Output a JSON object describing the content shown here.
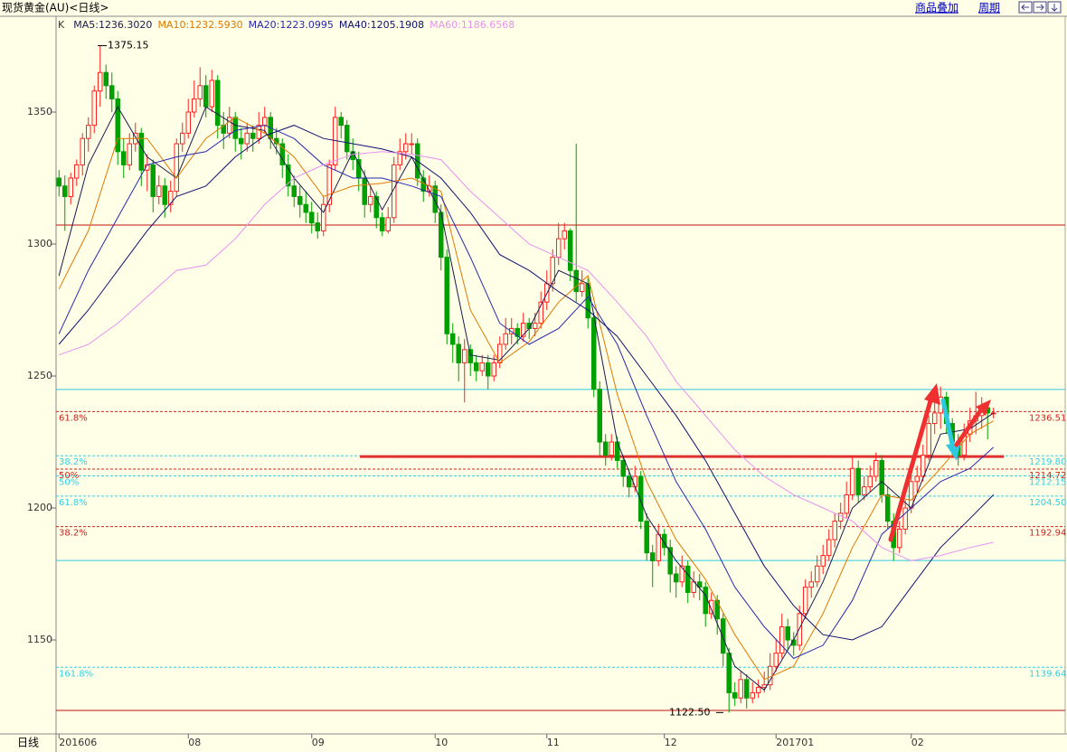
{
  "header": {
    "title": "现货黄金(AU)<日线>",
    "buttons": [
      "商品叠加",
      "周期"
    ]
  },
  "chart_data": {
    "type": "candlestick",
    "candle_label": "K",
    "period_label": "日线",
    "xlim": [
      -0.5,
      171.2
    ],
    "ylim": [
      1114.4,
      1386.3
    ],
    "yticks": [
      1150,
      1200,
      1250,
      1300,
      1350
    ],
    "xticks": [
      {
        "value": 0,
        "label": "201606"
      },
      {
        "value": 22,
        "label": "08"
      },
      {
        "value": 43,
        "label": "09"
      },
      {
        "value": 64,
        "label": "10"
      },
      {
        "value": 83,
        "label": "11"
      },
      {
        "value": 103,
        "label": "12"
      },
      {
        "value": 122,
        "label": "201701"
      },
      {
        "value": 145,
        "label": "02"
      }
    ],
    "grid": false,
    "up_color": "#ff2020",
    "down_color": "#00a000",
    "ohlc": [
      [
        1325,
        1328,
        1318,
        1322
      ],
      [
        1322,
        1326,
        1305,
        1318
      ],
      [
        1318,
        1327,
        1315,
        1325
      ],
      [
        1325,
        1332,
        1322,
        1330
      ],
      [
        1330,
        1342,
        1326,
        1340
      ],
      [
        1340,
        1348,
        1335,
        1345
      ],
      [
        1345,
        1360,
        1342,
        1358
      ],
      [
        1358,
        1375.15,
        1352,
        1365
      ],
      [
        1365,
        1368,
        1355,
        1360
      ],
      [
        1360,
        1365,
        1350,
        1355
      ],
      [
        1355,
        1358,
        1330,
        1335
      ],
      [
        1335,
        1340,
        1325,
        1330
      ],
      [
        1330,
        1342,
        1328,
        1338
      ],
      [
        1338,
        1346,
        1335,
        1342
      ],
      [
        1342,
        1344,
        1322,
        1328
      ],
      [
        1328,
        1334,
        1320,
        1330
      ],
      [
        1330,
        1332,
        1312,
        1318
      ],
      [
        1318,
        1326,
        1315,
        1322
      ],
      [
        1322,
        1325,
        1310,
        1315
      ],
      [
        1315,
        1324,
        1312,
        1320
      ],
      [
        1320,
        1340,
        1318,
        1338
      ],
      [
        1338,
        1346,
        1335,
        1342
      ],
      [
        1342,
        1355,
        1340,
        1350
      ],
      [
        1350,
        1362,
        1348,
        1355
      ],
      [
        1355,
        1367,
        1352,
        1360
      ],
      [
        1360,
        1364,
        1348,
        1352
      ],
      [
        1352,
        1366,
        1350,
        1362
      ],
      [
        1362,
        1364,
        1340,
        1345
      ],
      [
        1345,
        1350,
        1336,
        1342
      ],
      [
        1342,
        1352,
        1340,
        1348
      ],
      [
        1348,
        1350,
        1335,
        1340
      ],
      [
        1340,
        1344,
        1332,
        1338
      ],
      [
        1338,
        1346,
        1335,
        1342
      ],
      [
        1342,
        1345,
        1335,
        1340
      ],
      [
        1340,
        1350,
        1338,
        1345
      ],
      [
        1345,
        1352,
        1342,
        1348
      ],
      [
        1348,
        1350,
        1336,
        1340
      ],
      [
        1340,
        1344,
        1334,
        1338
      ],
      [
        1338,
        1340,
        1325,
        1330
      ],
      [
        1330,
        1334,
        1318,
        1322
      ],
      [
        1322,
        1326,
        1314,
        1318
      ],
      [
        1318,
        1322,
        1310,
        1315
      ],
      [
        1315,
        1320,
        1308,
        1312
      ],
      [
        1312,
        1316,
        1304,
        1308
      ],
      [
        1308,
        1312,
        1302,
        1305
      ],
      [
        1305,
        1318,
        1303,
        1315
      ],
      [
        1315,
        1332,
        1312,
        1330
      ],
      [
        1330,
        1352,
        1328,
        1348
      ],
      [
        1348,
        1350,
        1340,
        1345
      ],
      [
        1345,
        1347,
        1332,
        1335
      ],
      [
        1335,
        1340,
        1328,
        1332
      ],
      [
        1332,
        1335,
        1320,
        1325
      ],
      [
        1325,
        1328,
        1310,
        1315
      ],
      [
        1315,
        1322,
        1312,
        1318
      ],
      [
        1318,
        1320,
        1306,
        1310
      ],
      [
        1310,
        1312,
        1303,
        1305
      ],
      [
        1305,
        1314,
        1304,
        1310
      ],
      [
        1310,
        1333,
        1308,
        1330
      ],
      [
        1330,
        1340,
        1328,
        1335
      ],
      [
        1335,
        1342,
        1332,
        1338
      ],
      [
        1338,
        1342,
        1334,
        1338
      ],
      [
        1338,
        1340,
        1322,
        1325
      ],
      [
        1325,
        1328,
        1316,
        1320
      ],
      [
        1320,
        1326,
        1318,
        1322
      ],
      [
        1322,
        1324,
        1308,
        1312
      ],
      [
        1312,
        1315,
        1290,
        1295
      ],
      [
        1295,
        1298,
        1262,
        1266
      ],
      [
        1266,
        1270,
        1255,
        1262
      ],
      [
        1262,
        1265,
        1248,
        1255
      ],
      [
        1255,
        1264,
        1240,
        1260
      ],
      [
        1260,
        1262,
        1250,
        1255
      ],
      [
        1255,
        1258,
        1248,
        1252
      ],
      [
        1252,
        1258,
        1250,
        1255
      ],
      [
        1255,
        1258,
        1245,
        1250
      ],
      [
        1250,
        1258,
        1248,
        1255
      ],
      [
        1255,
        1265,
        1253,
        1262
      ],
      [
        1262,
        1272,
        1260,
        1266
      ],
      [
        1266,
        1272,
        1262,
        1268
      ],
      [
        1268,
        1270,
        1262,
        1265
      ],
      [
        1265,
        1274,
        1263,
        1270
      ],
      [
        1270,
        1272,
        1264,
        1268
      ],
      [
        1268,
        1274,
        1265,
        1270
      ],
      [
        1270,
        1282,
        1268,
        1278
      ],
      [
        1278,
        1290,
        1275,
        1285
      ],
      [
        1285,
        1298,
        1282,
        1295
      ],
      [
        1295,
        1308,
        1292,
        1302
      ],
      [
        1302,
        1308,
        1298,
        1305
      ],
      [
        1305,
        1306,
        1286,
        1290
      ],
      [
        1290,
        1338,
        1278,
        1282
      ],
      [
        1282,
        1290,
        1280,
        1285
      ],
      [
        1285,
        1287,
        1268,
        1272
      ],
      [
        1272,
        1274,
        1242,
        1245
      ],
      [
        1245,
        1248,
        1220,
        1225
      ],
      [
        1225,
        1228,
        1216,
        1220
      ],
      [
        1220,
        1228,
        1218,
        1225
      ],
      [
        1225,
        1227,
        1215,
        1218
      ],
      [
        1218,
        1220,
        1208,
        1212
      ],
      [
        1212,
        1215,
        1204,
        1208
      ],
      [
        1208,
        1216,
        1206,
        1212
      ],
      [
        1212,
        1214,
        1192,
        1195
      ],
      [
        1195,
        1198,
        1180,
        1183
      ],
      [
        1183,
        1186,
        1170,
        1180
      ],
      [
        1180,
        1194,
        1178,
        1190
      ],
      [
        1190,
        1192,
        1182,
        1185
      ],
      [
        1185,
        1188,
        1168,
        1175
      ],
      [
        1175,
        1178,
        1166,
        1172
      ],
      [
        1172,
        1182,
        1170,
        1178
      ],
      [
        1178,
        1180,
        1164,
        1168
      ],
      [
        1168,
        1176,
        1166,
        1172
      ],
      [
        1172,
        1175,
        1165,
        1170
      ],
      [
        1170,
        1172,
        1155,
        1160
      ],
      [
        1160,
        1168,
        1158,
        1165
      ],
      [
        1165,
        1167,
        1152,
        1158
      ],
      [
        1158,
        1160,
        1140,
        1145
      ],
      [
        1145,
        1147,
        1122.5,
        1130
      ],
      [
        1130,
        1134,
        1125,
        1128
      ],
      [
        1128,
        1138,
        1126,
        1135
      ],
      [
        1135,
        1137,
        1124,
        1128
      ],
      [
        1128,
        1134,
        1126,
        1130
      ],
      [
        1130,
        1135,
        1128,
        1132
      ],
      [
        1132,
        1138,
        1130,
        1133
      ],
      [
        1133,
        1145,
        1131,
        1140
      ],
      [
        1140,
        1150,
        1138,
        1145
      ],
      [
        1145,
        1160,
        1143,
        1155
      ],
      [
        1155,
        1158,
        1146,
        1150
      ],
      [
        1150,
        1153,
        1144,
        1148
      ],
      [
        1148,
        1163,
        1146,
        1160
      ],
      [
        1160,
        1173,
        1158,
        1170
      ],
      [
        1170,
        1176,
        1166,
        1172
      ],
      [
        1172,
        1182,
        1170,
        1178
      ],
      [
        1178,
        1186,
        1175,
        1182
      ],
      [
        1182,
        1192,
        1180,
        1188
      ],
      [
        1188,
        1198,
        1185,
        1195
      ],
      [
        1195,
        1202,
        1192,
        1198
      ],
      [
        1198,
        1210,
        1196,
        1205
      ],
      [
        1205,
        1220,
        1203,
        1215
      ],
      [
        1215,
        1218,
        1202,
        1205
      ],
      [
        1205,
        1212,
        1203,
        1208
      ],
      [
        1208,
        1216,
        1206,
        1212
      ],
      [
        1212,
        1221,
        1210,
        1218
      ],
      [
        1218,
        1220,
        1202,
        1205
      ],
      [
        1205,
        1208,
        1192,
        1195
      ],
      [
        1195,
        1198,
        1180,
        1185
      ],
      [
        1185,
        1195,
        1183,
        1192
      ],
      [
        1192,
        1203,
        1190,
        1200
      ],
      [
        1200,
        1213,
        1198,
        1210
      ],
      [
        1210,
        1216,
        1206,
        1212
      ],
      [
        1212,
        1224,
        1210,
        1220
      ],
      [
        1220,
        1235,
        1218,
        1232
      ],
      [
        1232,
        1240,
        1228,
        1236
      ],
      [
        1236,
        1246,
        1230,
        1242
      ],
      [
        1242,
        1244,
        1228,
        1232
      ],
      [
        1232,
        1234,
        1220,
        1225
      ],
      [
        1225,
        1228,
        1216,
        1220
      ],
      [
        1220,
        1232,
        1218,
        1228
      ],
      [
        1228,
        1238,
        1225,
        1233
      ],
      [
        1233,
        1244,
        1228,
        1235
      ],
      [
        1235,
        1242,
        1230,
        1238
      ],
      [
        1238,
        1240,
        1226,
        1236
      ],
      [
        1236,
        1238,
        1234,
        1236
      ]
    ],
    "ma_x": [
      0,
      5,
      10,
      15,
      20,
      25,
      30,
      35,
      40,
      45,
      50,
      55,
      60,
      65,
      70,
      75,
      80,
      85,
      90,
      95,
      100,
      105,
      110,
      115,
      120,
      125,
      130,
      135,
      140,
      145,
      150,
      155,
      159
    ],
    "series": [
      {
        "name": "MA5:1236.3020",
        "color": "#1a1a50",
        "values": [
          1288,
          1330,
          1352,
          1333,
          1325,
          1352,
          1345,
          1343,
          1325,
          1312,
          1335,
          1313,
          1333,
          1312,
          1258,
          1256,
          1268,
          1290,
          1285,
          1225,
          1197,
          1180,
          1167,
          1140,
          1131,
          1150,
          1172,
          1200,
          1210,
          1200,
          1228,
          1230,
          1236
        ]
      },
      {
        "name": "MA10:1232.5930",
        "color": "#e07800",
        "values": [
          1283,
          1305,
          1340,
          1340,
          1325,
          1340,
          1348,
          1342,
          1333,
          1318,
          1322,
          1323,
          1325,
          1320,
          1275,
          1255,
          1263,
          1278,
          1288,
          1243,
          1210,
          1188,
          1173,
          1152,
          1135,
          1140,
          1160,
          1185,
          1205,
          1203,
          1215,
          1228,
          1233
        ]
      },
      {
        "name": "MA20:1223.0995",
        "color": "#2828b0",
        "values": [
          1266,
          1290,
          1310,
          1330,
          1333,
          1335,
          1343,
          1345,
          1340,
          1330,
          1325,
          1325,
          1322,
          1318,
          1295,
          1270,
          1262,
          1268,
          1280,
          1262,
          1235,
          1210,
          1192,
          1170,
          1155,
          1143,
          1148,
          1165,
          1190,
          1200,
          1210,
          1215,
          1223
        ]
      },
      {
        "name": "MA40:1205.1908",
        "color": "#101070",
        "values": [
          1262,
          1275,
          1290,
          1305,
          1318,
          1322,
          1333,
          1341,
          1345,
          1340,
          1338,
          1336,
          1333,
          1325,
          1312,
          1296,
          1290,
          1282,
          1275,
          1265,
          1250,
          1235,
          1218,
          1198,
          1178,
          1163,
          1152,
          1150,
          1155,
          1170,
          1185,
          1196,
          1205
        ]
      },
      {
        "name": "MA60:1186.6568",
        "color": "#e890f0",
        "values": [
          1258,
          1262,
          1270,
          1280,
          1290,
          1292,
          1302,
          1315,
          1325,
          1330,
          1334,
          1335,
          1334,
          1332,
          1320,
          1310,
          1300,
          1295,
          1290,
          1278,
          1265,
          1248,
          1235,
          1222,
          1212,
          1205,
          1200,
          1195,
          1185,
          1180,
          1182,
          1185,
          1187
        ]
      }
    ],
    "levels": [
      {
        "value": 1236.51,
        "label": "1236.51",
        "ratio": "61.8%",
        "color": "#d02020"
      },
      {
        "value": 1219.8,
        "label": "1219.80",
        "ratio": "38.2%",
        "color": "#30d0e8"
      },
      {
        "value": 1214.72,
        "label": "1214.72",
        "ratio": "50%",
        "color": "#d02020"
      },
      {
        "value": 1212.15,
        "label": "1212.15",
        "ratio": "50%",
        "color": "#30d0e8"
      },
      {
        "value": 1204.5,
        "label": "1204.50",
        "ratio": "61.8%",
        "color": "#30d0e8"
      },
      {
        "value": 1192.94,
        "label": "1192.94",
        "ratio": "38.2%",
        "color": "#d02020"
      },
      {
        "value": 1139.64,
        "label": "1139.64",
        "ratio": "161.8%",
        "color": "#30d0e8"
      }
    ],
    "lines": [
      {
        "value": 1307.2,
        "color": "#c01010"
      },
      {
        "value": 1244.9,
        "color": "#30c8e0"
      },
      {
        "value": 1180.1,
        "color": "#30c8e0"
      },
      {
        "value": 1123.3,
        "color": "#c01010"
      }
    ],
    "support_line": {
      "value": 1219.5,
      "x": [
        51.2,
        160.8
      ],
      "color": "#e03030"
    },
    "annotations": [
      {
        "value": 1375.15,
        "label": "1375.15"
      },
      {
        "value": 1122.5,
        "label": "1122.50"
      }
    ]
  }
}
